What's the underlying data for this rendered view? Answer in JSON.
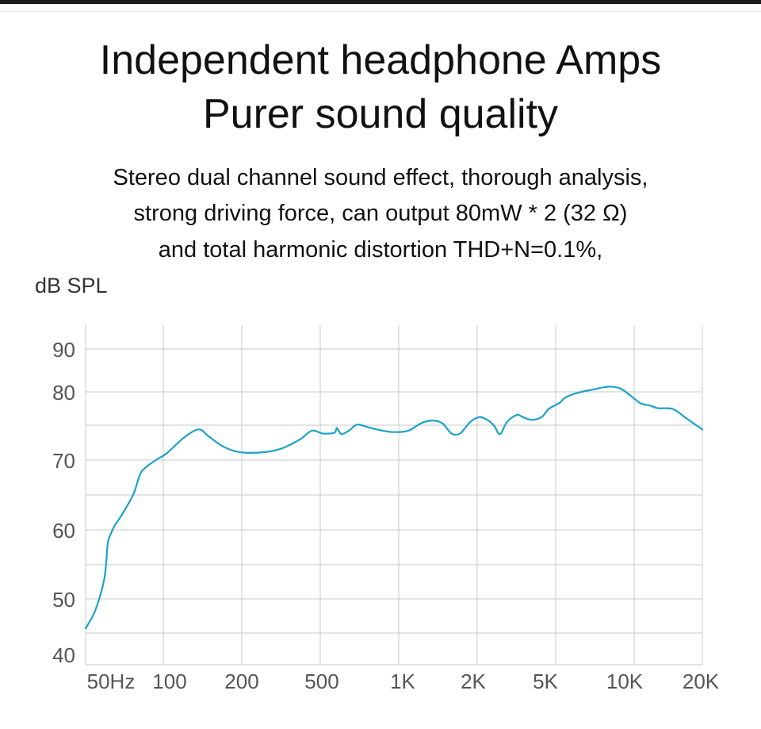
{
  "header": {
    "title_line1": "Independent headphone Amps",
    "title_line2": "Purer sound quality",
    "desc_line1": "Stereo dual channel sound effect, thorough analysis,",
    "desc_line2": "strong driving force, can output 80mW * 2 (32 Ω)",
    "desc_line3": "and total harmonic distortion THD+N=0.1%,"
  },
  "colors": {
    "curve": "#1aa3c8",
    "grid": "#c9c9c9",
    "tick_text": "#555555"
  },
  "chart_data": {
    "type": "line",
    "title": "",
    "xlabel": "",
    "ylabel": "dB SPL",
    "x_scale": "log",
    "xlim": [
      50,
      20000
    ],
    "ylim": [
      40,
      90
    ],
    "grid": true,
    "x_ticks": [
      {
        "value": 50,
        "label": "50Hz"
      },
      {
        "value": 100,
        "label": "100"
      },
      {
        "value": 200,
        "label": "200"
      },
      {
        "value": 500,
        "label": "500"
      },
      {
        "value": 1000,
        "label": "1K"
      },
      {
        "value": 2000,
        "label": "2K"
      },
      {
        "value": 5000,
        "label": "5K"
      },
      {
        "value": 10000,
        "label": "10K"
      },
      {
        "value": 20000,
        "label": "20K"
      }
    ],
    "y_ticks": [
      {
        "value": 40,
        "label": "40"
      },
      {
        "value": 50,
        "label": "50"
      },
      {
        "value": 60,
        "label": "60"
      },
      {
        "value": 70,
        "label": "70"
      },
      {
        "value": 80,
        "label": "80"
      },
      {
        "value": 90,
        "label": "90"
      }
    ],
    "series": [
      {
        "x": [
          50,
          55,
          60,
          62,
          64,
          66,
          70,
          75,
          80,
          85,
          90,
          100,
          110,
          130,
          150,
          165,
          190,
          220,
          270,
          330,
          400,
          450,
          500,
          560,
          575,
          600,
          650,
          700,
          800,
          900,
          1000,
          1150,
          1300,
          1450,
          1600,
          1750,
          1900,
          2100,
          2300,
          2500,
          2650,
          2800,
          3000,
          3300,
          3500,
          3800,
          4200,
          4500,
          5000,
          5300,
          6000,
          7000,
          8000,
          9000,
          10000,
          11000,
          12000,
          13000,
          15000,
          17000,
          18000,
          20000
        ],
        "values": [
          44.7,
          48,
          53,
          58,
          59.5,
          60.5,
          61.8,
          63.5,
          65.3,
          68,
          69,
          70.1,
          71,
          73.3,
          74.5,
          73.5,
          72,
          71.2,
          71.1,
          71.6,
          73,
          74.3,
          73.9,
          74,
          74.7,
          73.8,
          74.4,
          75.2,
          74.7,
          74.3,
          74.1,
          74.3,
          75.4,
          75.8,
          75.4,
          73.9,
          73.9,
          75.6,
          76.3,
          75.8,
          75,
          73.8,
          75.6,
          76.6,
          76.3,
          75.9,
          76.3,
          77.5,
          78.4,
          79.2,
          79.9,
          80.6,
          81.2,
          80.8,
          79.4,
          78.3,
          78,
          77.6,
          77.5,
          76.2,
          75.6,
          74.5
        ]
      }
    ]
  }
}
